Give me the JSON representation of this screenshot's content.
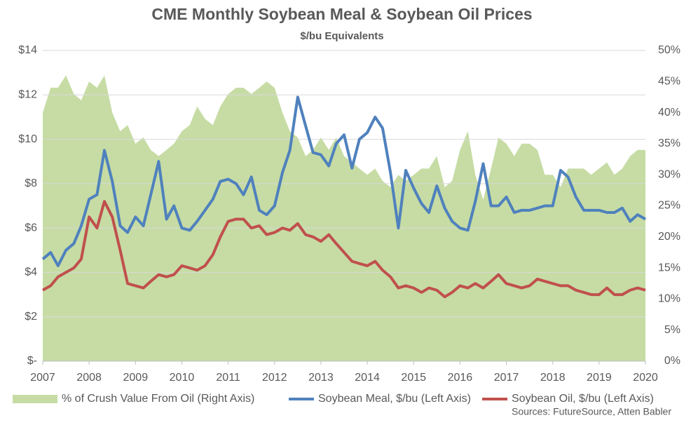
{
  "chart_data": {
    "type": "line",
    "title": "CME Monthly Soybean Meal & Soybean Oil Prices",
    "subtitle": "$/bu Equivalents",
    "source": "Sources: FutureSource, Atten Babler",
    "x": [
      2007,
      2007.17,
      2007.33,
      2007.5,
      2007.67,
      2007.83,
      2008,
      2008.17,
      2008.33,
      2008.5,
      2008.67,
      2008.83,
      2009,
      2009.17,
      2009.33,
      2009.5,
      2009.67,
      2009.83,
      2010,
      2010.17,
      2010.33,
      2010.5,
      2010.67,
      2010.83,
      2011,
      2011.17,
      2011.33,
      2011.5,
      2011.67,
      2011.83,
      2012,
      2012.17,
      2012.33,
      2012.5,
      2012.67,
      2012.83,
      2013,
      2013.17,
      2013.33,
      2013.5,
      2013.67,
      2013.83,
      2014,
      2014.17,
      2014.33,
      2014.5,
      2014.67,
      2014.83,
      2015,
      2015.17,
      2015.33,
      2015.5,
      2015.67,
      2015.83,
      2016,
      2016.17,
      2016.33,
      2016.5,
      2016.67,
      2016.83,
      2017,
      2017.17,
      2017.33,
      2017.5,
      2017.67,
      2017.83,
      2018,
      2018.17,
      2018.33,
      2018.5,
      2018.67,
      2018.83,
      2019,
      2019.17,
      2019.33,
      2019.5,
      2019.67,
      2019.83,
      2020
    ],
    "xlim": [
      2007,
      2020
    ],
    "xticks": [
      2007,
      2008,
      2009,
      2010,
      2011,
      2012,
      2013,
      2014,
      2015,
      2016,
      2017,
      2018,
      2019,
      2020
    ],
    "ylim": [
      0,
      14
    ],
    "yticks": [
      {
        "value": 0,
        "label": "$-"
      },
      {
        "value": 2,
        "label": "$2"
      },
      {
        "value": 4,
        "label": "$4"
      },
      {
        "value": 6,
        "label": "$6"
      },
      {
        "value": 8,
        "label": "$8"
      },
      {
        "value": 10,
        "label": "$10"
      },
      {
        "value": 12,
        "label": "$12"
      },
      {
        "value": 14,
        "label": "$14"
      }
    ],
    "y2lim": [
      0,
      50
    ],
    "y2ticks": [
      {
        "value": 0,
        "label": "0%"
      },
      {
        "value": 5,
        "label": "5%"
      },
      {
        "value": 10,
        "label": "10%"
      },
      {
        "value": 15,
        "label": "15%"
      },
      {
        "value": 20,
        "label": "20%"
      },
      {
        "value": 25,
        "label": "25%"
      },
      {
        "value": 30,
        "label": "30%"
      },
      {
        "value": 35,
        "label": "35%"
      },
      {
        "value": 40,
        "label": "40%"
      },
      {
        "value": 45,
        "label": "45%"
      },
      {
        "value": 50,
        "label": "50%"
      }
    ],
    "legend": "bottom",
    "series": [
      {
        "name": "% of Crush Value From Oil (Right Axis)",
        "kind": "area",
        "axis": "y2",
        "color": "#c6dca4",
        "values": [
          40,
          44,
          44,
          46,
          43,
          42,
          45,
          44,
          46,
          40,
          37,
          38,
          35,
          36,
          34,
          33,
          34,
          35,
          37,
          38,
          41,
          39,
          38,
          41,
          43,
          44,
          44,
          43,
          44,
          45,
          44,
          40,
          37,
          36,
          33,
          34,
          36,
          34,
          36,
          33,
          32,
          31,
          30,
          31,
          29,
          28,
          30,
          29,
          30,
          31,
          31,
          33,
          28,
          29,
          34,
          37,
          30,
          26,
          31,
          36,
          35,
          33,
          35,
          35,
          34,
          30,
          30,
          28,
          31,
          31,
          31,
          30,
          31,
          32,
          30,
          31,
          33,
          34,
          34
        ]
      },
      {
        "name": "Soybean Meal, $/bu (Left Axis)",
        "kind": "line",
        "color": "#4f81bd",
        "values": [
          4.6,
          4.9,
          4.3,
          5.0,
          5.3,
          6.1,
          7.3,
          7.5,
          9.5,
          8.1,
          6.1,
          5.8,
          6.5,
          6.1,
          7.5,
          9.0,
          6.4,
          7.0,
          6.0,
          5.9,
          6.3,
          6.8,
          7.3,
          8.1,
          8.2,
          8.0,
          7.5,
          8.3,
          6.8,
          6.6,
          7.0,
          8.5,
          9.5,
          11.9,
          10.6,
          9.4,
          9.3,
          8.8,
          9.8,
          10.2,
          8.7,
          10.0,
          10.3,
          11.0,
          10.5,
          8.5,
          6.0,
          8.6,
          7.8,
          7.1,
          6.7,
          7.9,
          6.9,
          6.3,
          6.0,
          5.9,
          7.2,
          8.9,
          7.0,
          7.0,
          7.4,
          6.7,
          6.8,
          6.8,
          6.9,
          7.0,
          7.0,
          8.6,
          8.3,
          7.4,
          6.8,
          6.8,
          6.8,
          6.7,
          6.7,
          6.9,
          6.3,
          6.6,
          6.4
        ]
      },
      {
        "name": "Soybean Oil, $/bu (Left Axis)",
        "kind": "line",
        "color": "#c0504d",
        "values": [
          3.2,
          3.4,
          3.8,
          4.0,
          4.2,
          4.6,
          6.5,
          6.0,
          7.2,
          6.5,
          5.0,
          3.5,
          3.4,
          3.3,
          3.6,
          3.9,
          3.8,
          3.9,
          4.3,
          4.2,
          4.1,
          4.3,
          4.8,
          5.6,
          6.3,
          6.4,
          6.4,
          6.0,
          6.1,
          5.7,
          5.8,
          6.0,
          5.9,
          6.2,
          5.7,
          5.6,
          5.4,
          5.7,
          5.3,
          4.9,
          4.5,
          4.4,
          4.3,
          4.5,
          4.1,
          3.8,
          3.3,
          3.4,
          3.3,
          3.1,
          3.3,
          3.2,
          2.9,
          3.1,
          3.4,
          3.3,
          3.5,
          3.3,
          3.6,
          3.9,
          3.5,
          3.4,
          3.3,
          3.4,
          3.7,
          3.6,
          3.5,
          3.4,
          3.4,
          3.2,
          3.1,
          3.0,
          3.0,
          3.3,
          3.0,
          3.0,
          3.2,
          3.3,
          3.2
        ]
      }
    ]
  }
}
